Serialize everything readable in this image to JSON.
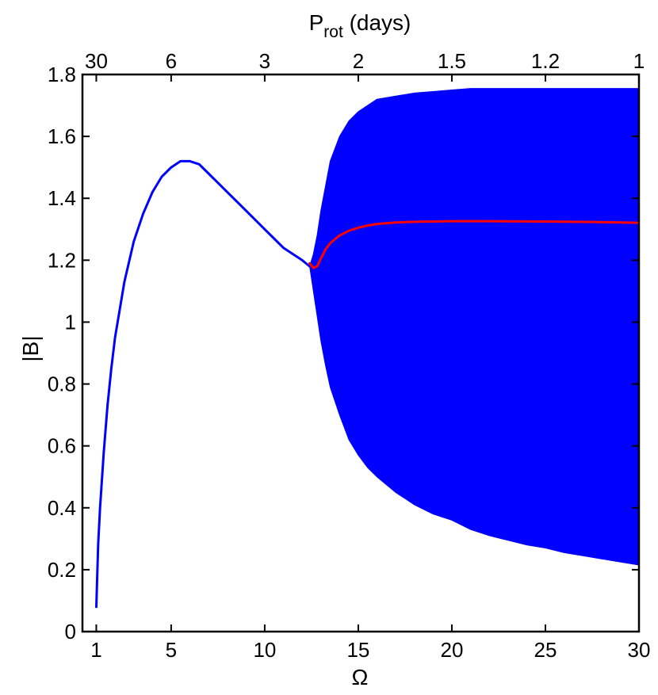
{
  "chart_data": {
    "type": "line",
    "xlabel": "Ω",
    "ylabel": "|B|",
    "top_axis_label": {
      "main": "P",
      "subscript": "rot",
      "suffix": " (days)"
    },
    "xlim": [
      0,
      30
    ],
    "ylim": [
      0,
      1.8
    ],
    "x_ticks": [
      1,
      5,
      10,
      15,
      20,
      25,
      30
    ],
    "x_tick_labels": [
      "1",
      "5",
      "10",
      "15",
      "20",
      "25",
      "30"
    ],
    "y_ticks": [
      0,
      0.2,
      0.4,
      0.6,
      0.8,
      1,
      1.2,
      1.4,
      1.6,
      1.8
    ],
    "y_tick_labels": [
      "0",
      "0.2",
      "0.4",
      "0.6",
      "0.8",
      "1",
      "1.2",
      "1.4",
      "1.6",
      "1.8"
    ],
    "top_ticks": {
      "omega": [
        1,
        5,
        10,
        15,
        20,
        25,
        30
      ],
      "labels": [
        "30",
        "6",
        "3",
        "2",
        "1.5",
        "1.2",
        "1"
      ]
    },
    "grid": false,
    "legend": "none",
    "colors": {
      "steady": "#0000ff",
      "oscillation_envelope": "#0000ff",
      "mean": "#ff0000"
    },
    "series": [
      {
        "type": "line",
        "color": "#0000ff",
        "x": [
          1.0,
          1.1,
          1.2,
          1.4,
          1.6,
          1.8,
          2.0,
          2.5,
          3.0,
          3.5,
          4.0,
          4.5,
          5.0,
          5.5,
          6.0,
          6.5,
          7.0,
          7.5,
          8.0,
          8.5,
          9.0,
          9.5,
          10.0,
          10.5,
          11.0,
          11.5,
          12.0,
          12.4
        ],
        "y": [
          0.08,
          0.28,
          0.4,
          0.58,
          0.73,
          0.85,
          0.95,
          1.13,
          1.26,
          1.35,
          1.42,
          1.47,
          1.5,
          1.52,
          1.52,
          1.51,
          1.48,
          1.45,
          1.42,
          1.39,
          1.36,
          1.33,
          1.3,
          1.27,
          1.24,
          1.22,
          1.2,
          1.18
        ]
      },
      {
        "type": "area",
        "color": "#0000ff",
        "x": [
          12.4,
          12.6,
          12.8,
          13.0,
          13.25,
          13.5,
          14.0,
          14.5,
          15.0,
          15.5,
          16.0,
          17.0,
          18.0,
          19.0,
          20.0,
          21.0,
          22.0,
          23.0,
          24.0,
          25.0,
          26.0,
          27.0,
          28.0,
          29.0,
          30.0
        ],
        "upper": [
          1.18,
          1.22,
          1.28,
          1.36,
          1.44,
          1.52,
          1.6,
          1.65,
          1.68,
          1.7,
          1.72,
          1.73,
          1.74,
          1.745,
          1.75,
          1.755,
          1.755,
          1.755,
          1.755,
          1.755,
          1.755,
          1.755,
          1.755,
          1.755,
          1.755
        ],
        "lower": [
          1.18,
          1.1,
          1.02,
          0.94,
          0.86,
          0.79,
          0.7,
          0.62,
          0.57,
          0.53,
          0.5,
          0.45,
          0.41,
          0.38,
          0.36,
          0.33,
          0.31,
          0.295,
          0.28,
          0.27,
          0.255,
          0.245,
          0.235,
          0.225,
          0.215
        ]
      },
      {
        "type": "line",
        "color": "#ff0000",
        "x": [
          12.4,
          12.6,
          12.8,
          13.0,
          13.25,
          13.5,
          14.0,
          14.5,
          15.0,
          15.5,
          16.0,
          17.0,
          18.0,
          20.0,
          22.0,
          25.0,
          28.0,
          30.0
        ],
        "y": [
          1.19,
          1.175,
          1.18,
          1.205,
          1.235,
          1.255,
          1.28,
          1.295,
          1.305,
          1.312,
          1.317,
          1.322,
          1.324,
          1.326,
          1.326,
          1.325,
          1.323,
          1.321
        ]
      }
    ]
  }
}
